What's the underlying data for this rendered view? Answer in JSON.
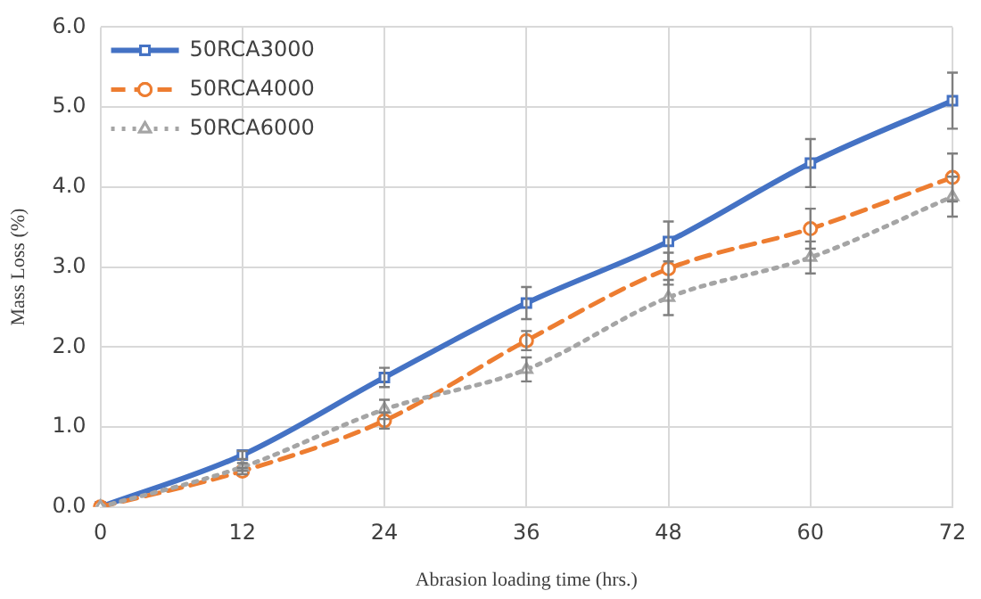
{
  "chart_data": {
    "type": "line",
    "xlabel": "Abrasion loading time (hrs.)",
    "ylabel": "Mass Loss (%)",
    "categories": [
      "0",
      "12",
      "24",
      "36",
      "48",
      "60",
      "72"
    ],
    "series": [
      {
        "name": "50RCA3000",
        "color": "#4472c4",
        "marker": "square",
        "line_style": "solid",
        "values": [
          0,
          0.65,
          1.62,
          2.55,
          3.32,
          4.3,
          5.08
        ],
        "errors": [
          null,
          0.05,
          0.12,
          0.2,
          0.25,
          0.3,
          0.35
        ]
      },
      {
        "name": "50RCA4000",
        "color": "#ed7d31",
        "marker": "circle",
        "line_style": "dashed",
        "values": [
          0,
          0.45,
          1.08,
          2.08,
          2.98,
          3.48,
          4.12
        ],
        "errors": [
          null,
          0.04,
          0.1,
          0.12,
          0.2,
          0.25,
          0.3
        ]
      },
      {
        "name": "50RCA6000",
        "color": "#a5a5a5",
        "marker": "triangle",
        "line_style": "dotted",
        "values": [
          0,
          0.5,
          1.22,
          1.72,
          2.62,
          3.12,
          3.88
        ],
        "errors": [
          null,
          0.05,
          0.12,
          0.15,
          0.22,
          0.2,
          0.25
        ]
      }
    ],
    "ylim": [
      0,
      6
    ],
    "yticks": [
      {
        "value": 0,
        "label": "0.0"
      },
      {
        "value": 1,
        "label": "1.0"
      },
      {
        "value": 2,
        "label": "2.0"
      },
      {
        "value": 3,
        "label": "3.0"
      },
      {
        "value": 4,
        "label": "4.0"
      },
      {
        "value": 5,
        "label": "5.0"
      },
      {
        "value": 6,
        "label": "6.0"
      }
    ],
    "grid": true,
    "legend": "top left"
  }
}
